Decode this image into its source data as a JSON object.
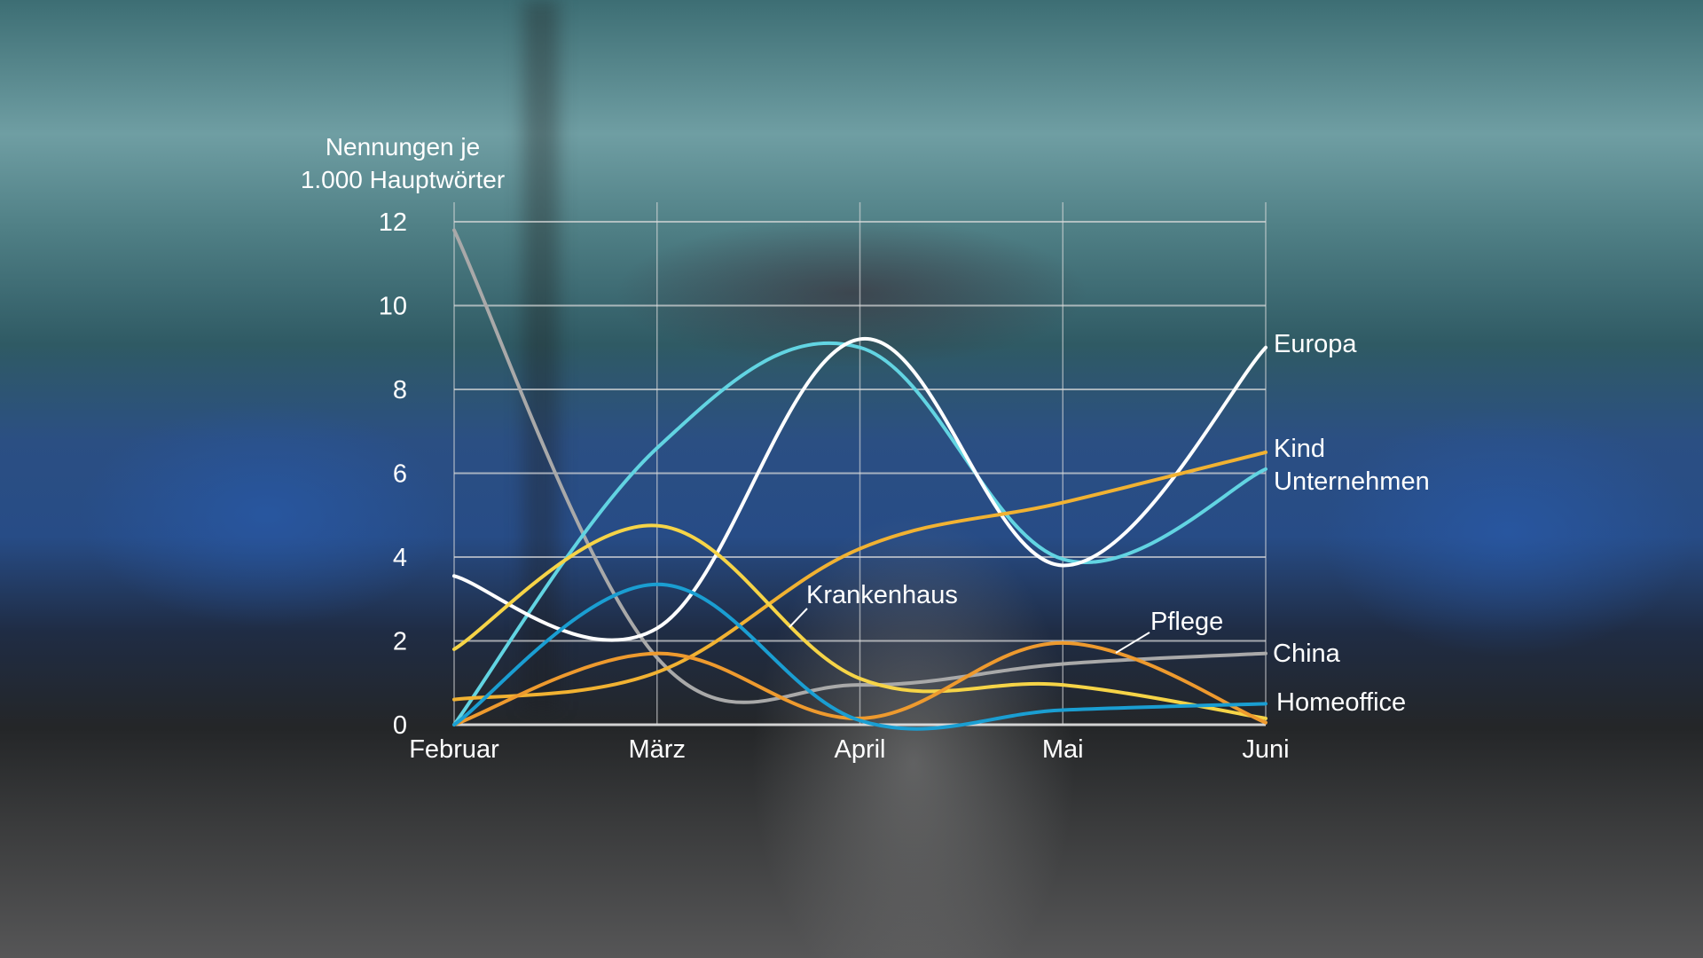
{
  "chart_data": {
    "type": "line",
    "ylabel_lines": [
      "Nennungen je",
      "1.000 Hauptwörter"
    ],
    "categories": [
      "Februar",
      "März",
      "April",
      "Mai",
      "Juni"
    ],
    "ylim": [
      0,
      12
    ],
    "yticks": [
      0,
      2,
      4,
      6,
      8,
      10,
      12
    ],
    "grid": true,
    "smooth": true,
    "legend": "direct labels at line ends",
    "series": [
      {
        "name": "China",
        "color": "#a9a9a9",
        "values": [
          11.8,
          1.6,
          0.95,
          1.45,
          1.7
        ]
      },
      {
        "name": "Unternehmen",
        "color": "#62d4e2",
        "values": [
          0,
          6.6,
          9.0,
          3.95,
          6.1
        ]
      },
      {
        "name": "Europa",
        "color": "#ffffff",
        "values": [
          3.55,
          2.3,
          9.2,
          3.8,
          9.0
        ]
      },
      {
        "name": "Kind",
        "color": "#f1b232",
        "values": [
          0.6,
          1.25,
          4.2,
          5.3,
          6.5
        ]
      },
      {
        "name": "Krankenhaus",
        "color": "#f6d447",
        "values": [
          1.8,
          4.75,
          1.1,
          0.95,
          0.15
        ]
      },
      {
        "name": "Pflege",
        "color": "#ee9a2e",
        "values": [
          0,
          1.7,
          0.15,
          1.95,
          0.05
        ]
      },
      {
        "name": "Homeoffice",
        "color": "#1a9ed2",
        "values": [
          0,
          3.35,
          0.1,
          0.35,
          0.5
        ]
      }
    ]
  }
}
